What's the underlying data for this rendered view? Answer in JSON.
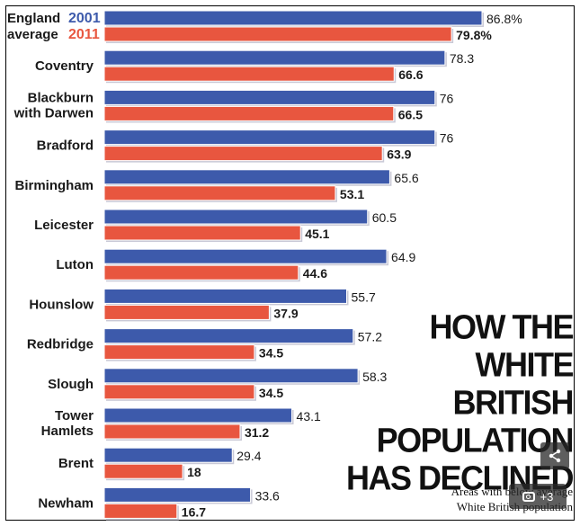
{
  "chart_data": {
    "type": "bar",
    "orientation": "horizontal",
    "title": "HOW THE WHITE BRITISH POPULATION HAS DECLINED",
    "subtitle": "Areas with below average White British population",
    "legend": {
      "label": "England average",
      "label_line1": "England",
      "label_line2": "average",
      "entries": [
        "2001",
        "2011"
      ],
      "placement": "top-left"
    },
    "categories": [
      "England average",
      "Coventry",
      "Blackburn with Darwen",
      "Bradford",
      "Birmingham",
      "Leicester",
      "Luton",
      "Hounslow",
      "Redbridge",
      "Slough",
      "Tower Hamlets",
      "Brent",
      "Newham"
    ],
    "category_lines": [
      [
        "England",
        "average"
      ],
      [
        "Coventry"
      ],
      [
        "Blackburn",
        "with Darwen"
      ],
      [
        "Bradford"
      ],
      [
        "Birmingham"
      ],
      [
        "Leicester"
      ],
      [
        "Luton"
      ],
      [
        "Hounslow"
      ],
      [
        "Redbridge"
      ],
      [
        "Slough"
      ],
      [
        "Tower",
        "Hamlets"
      ],
      [
        "Brent"
      ],
      [
        "Newham"
      ]
    ],
    "series": [
      {
        "name": "2001",
        "color": "#3d5aab",
        "values": [
          86.8,
          78.3,
          76,
          76,
          65.6,
          60.5,
          64.9,
          55.7,
          57.2,
          58.3,
          43.1,
          29.4,
          33.6
        ],
        "labels": [
          "86.8%",
          "78.3",
          "76",
          "76",
          "65.6",
          "60.5",
          "64.9",
          "55.7",
          "57.2",
          "58.3",
          "43.1",
          "29.4",
          "33.6"
        ]
      },
      {
        "name": "2011",
        "color": "#e8563f",
        "values": [
          79.8,
          66.6,
          66.5,
          63.9,
          53.1,
          45.1,
          44.6,
          37.9,
          34.5,
          34.5,
          31.2,
          18,
          16.7
        ],
        "labels": [
          "79.8%",
          "66.6",
          "66.5",
          "63.9",
          "53.1",
          "45.1",
          "44.6",
          "37.9",
          "34.5",
          "34.5",
          "31.2",
          "18",
          "16.7"
        ]
      }
    ],
    "xlim": [
      0,
      100
    ],
    "grid": false
  },
  "headline_lines": [
    "HOW THE",
    "WHITE",
    "BRITISH",
    "POPULATION",
    "HAS DECLINED"
  ],
  "subtitle_lines": [
    "Areas with below average",
    "White British population"
  ],
  "overlay": {
    "share_icon": "share-icon",
    "gallery_icon": "camera-icon",
    "gallery_count": "+3"
  }
}
